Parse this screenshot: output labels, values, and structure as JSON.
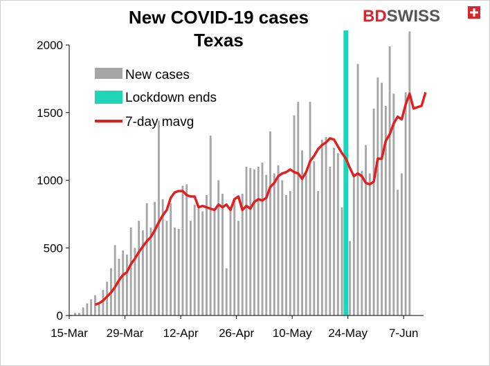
{
  "brand": {
    "name_part1": "BD",
    "name_part2": "SWISS",
    "color1": "#d9262e",
    "color2": "#555555",
    "mark": "+"
  },
  "chart_data": {
    "type": "bar",
    "title_lines": [
      "New COVID-19 cases",
      "Texas"
    ],
    "xlabel": "",
    "ylabel": "",
    "ylim": [
      0,
      2000
    ],
    "yticks": [
      0,
      500,
      1000,
      1500,
      2000
    ],
    "x_start": "2020-03-15",
    "x_end": "2020-06-11",
    "xtick_labels": [
      {
        "date": "2020-03-15",
        "label": "15-Mar"
      },
      {
        "date": "2020-03-29",
        "label": "29-Mar"
      },
      {
        "date": "2020-04-12",
        "label": "12-Apr"
      },
      {
        "date": "2020-04-26",
        "label": "26-Apr"
      },
      {
        "date": "2020-05-10",
        "label": "10-May"
      },
      {
        "date": "2020-05-24",
        "label": "24-May"
      },
      {
        "date": "2020-06-07",
        "label": "7-Jun"
      }
    ],
    "legend": {
      "position": "top-left",
      "items": [
        {
          "label": "New cases",
          "color": "#a6a6a6",
          "kind": "bar"
        },
        {
          "label": "Lockdown ends",
          "color": "#1fd4b8",
          "kind": "band"
        },
        {
          "label": "7-day mavg",
          "color": "#e02020",
          "kind": "line"
        }
      ]
    },
    "lockdown_end_date": "2020-05-23",
    "series": [
      {
        "name": "New cases",
        "type": "bar",
        "color": "#a6a6a6",
        "start_date": "2020-03-15",
        "values": [
          5,
          20,
          20,
          60,
          90,
          120,
          150,
          80,
          190,
          250,
          350,
          520,
          420,
          480,
          450,
          650,
          500,
          700,
          630,
          830,
          650,
          840,
          1440,
          860,
          700,
          830,
          650,
          640,
          960,
          970,
          700,
          820,
          790,
          770,
          890,
          1330,
          780,
          1000,
          900,
          350,
          780,
          860,
          700,
          900,
          1100,
          1090,
          1080,
          1100,
          1130,
          1040,
          1360,
          1050,
          1110,
          1000,
          890,
          920,
          1480,
          1580,
          1220,
          1050,
          1580,
          1140,
          920,
          1300,
          1320,
          1100,
          1240,
          1200,
          800,
          950,
          550,
          1050,
          1860,
          1070,
          1260,
          1050,
          1530,
          1760,
          1720,
          1550,
          1990,
          1640,
          930,
          1050,
          1650,
          2100
        ]
      },
      {
        "name": "7-day mavg",
        "type": "line",
        "color": "#e02020",
        "start_date": "2020-03-21",
        "values": [
          80,
          90,
          110,
          140,
          170,
          210,
          260,
          300,
          320,
          380,
          420,
          470,
          510,
          550,
          580,
          630,
          690,
          740,
          780,
          870,
          910,
          920,
          920,
          890,
          880,
          880,
          800,
          810,
          800,
          790,
          780,
          820,
          800,
          820,
          780,
          860,
          880,
          780,
          810,
          790,
          840,
          860,
          850,
          870,
          950,
          980,
          1030,
          1050,
          1060,
          1080,
          1060,
          1050,
          1010,
          1060,
          1140,
          1180,
          1230,
          1260,
          1280,
          1310,
          1300,
          1250,
          1200,
          1160,
          1090,
          1030,
          1050,
          1030,
          980,
          970,
          990,
          1160,
          1160,
          1290,
          1340,
          1420,
          1470,
          1450,
          1560,
          1640,
          1530,
          1540,
          1550,
          1650
        ]
      }
    ]
  }
}
